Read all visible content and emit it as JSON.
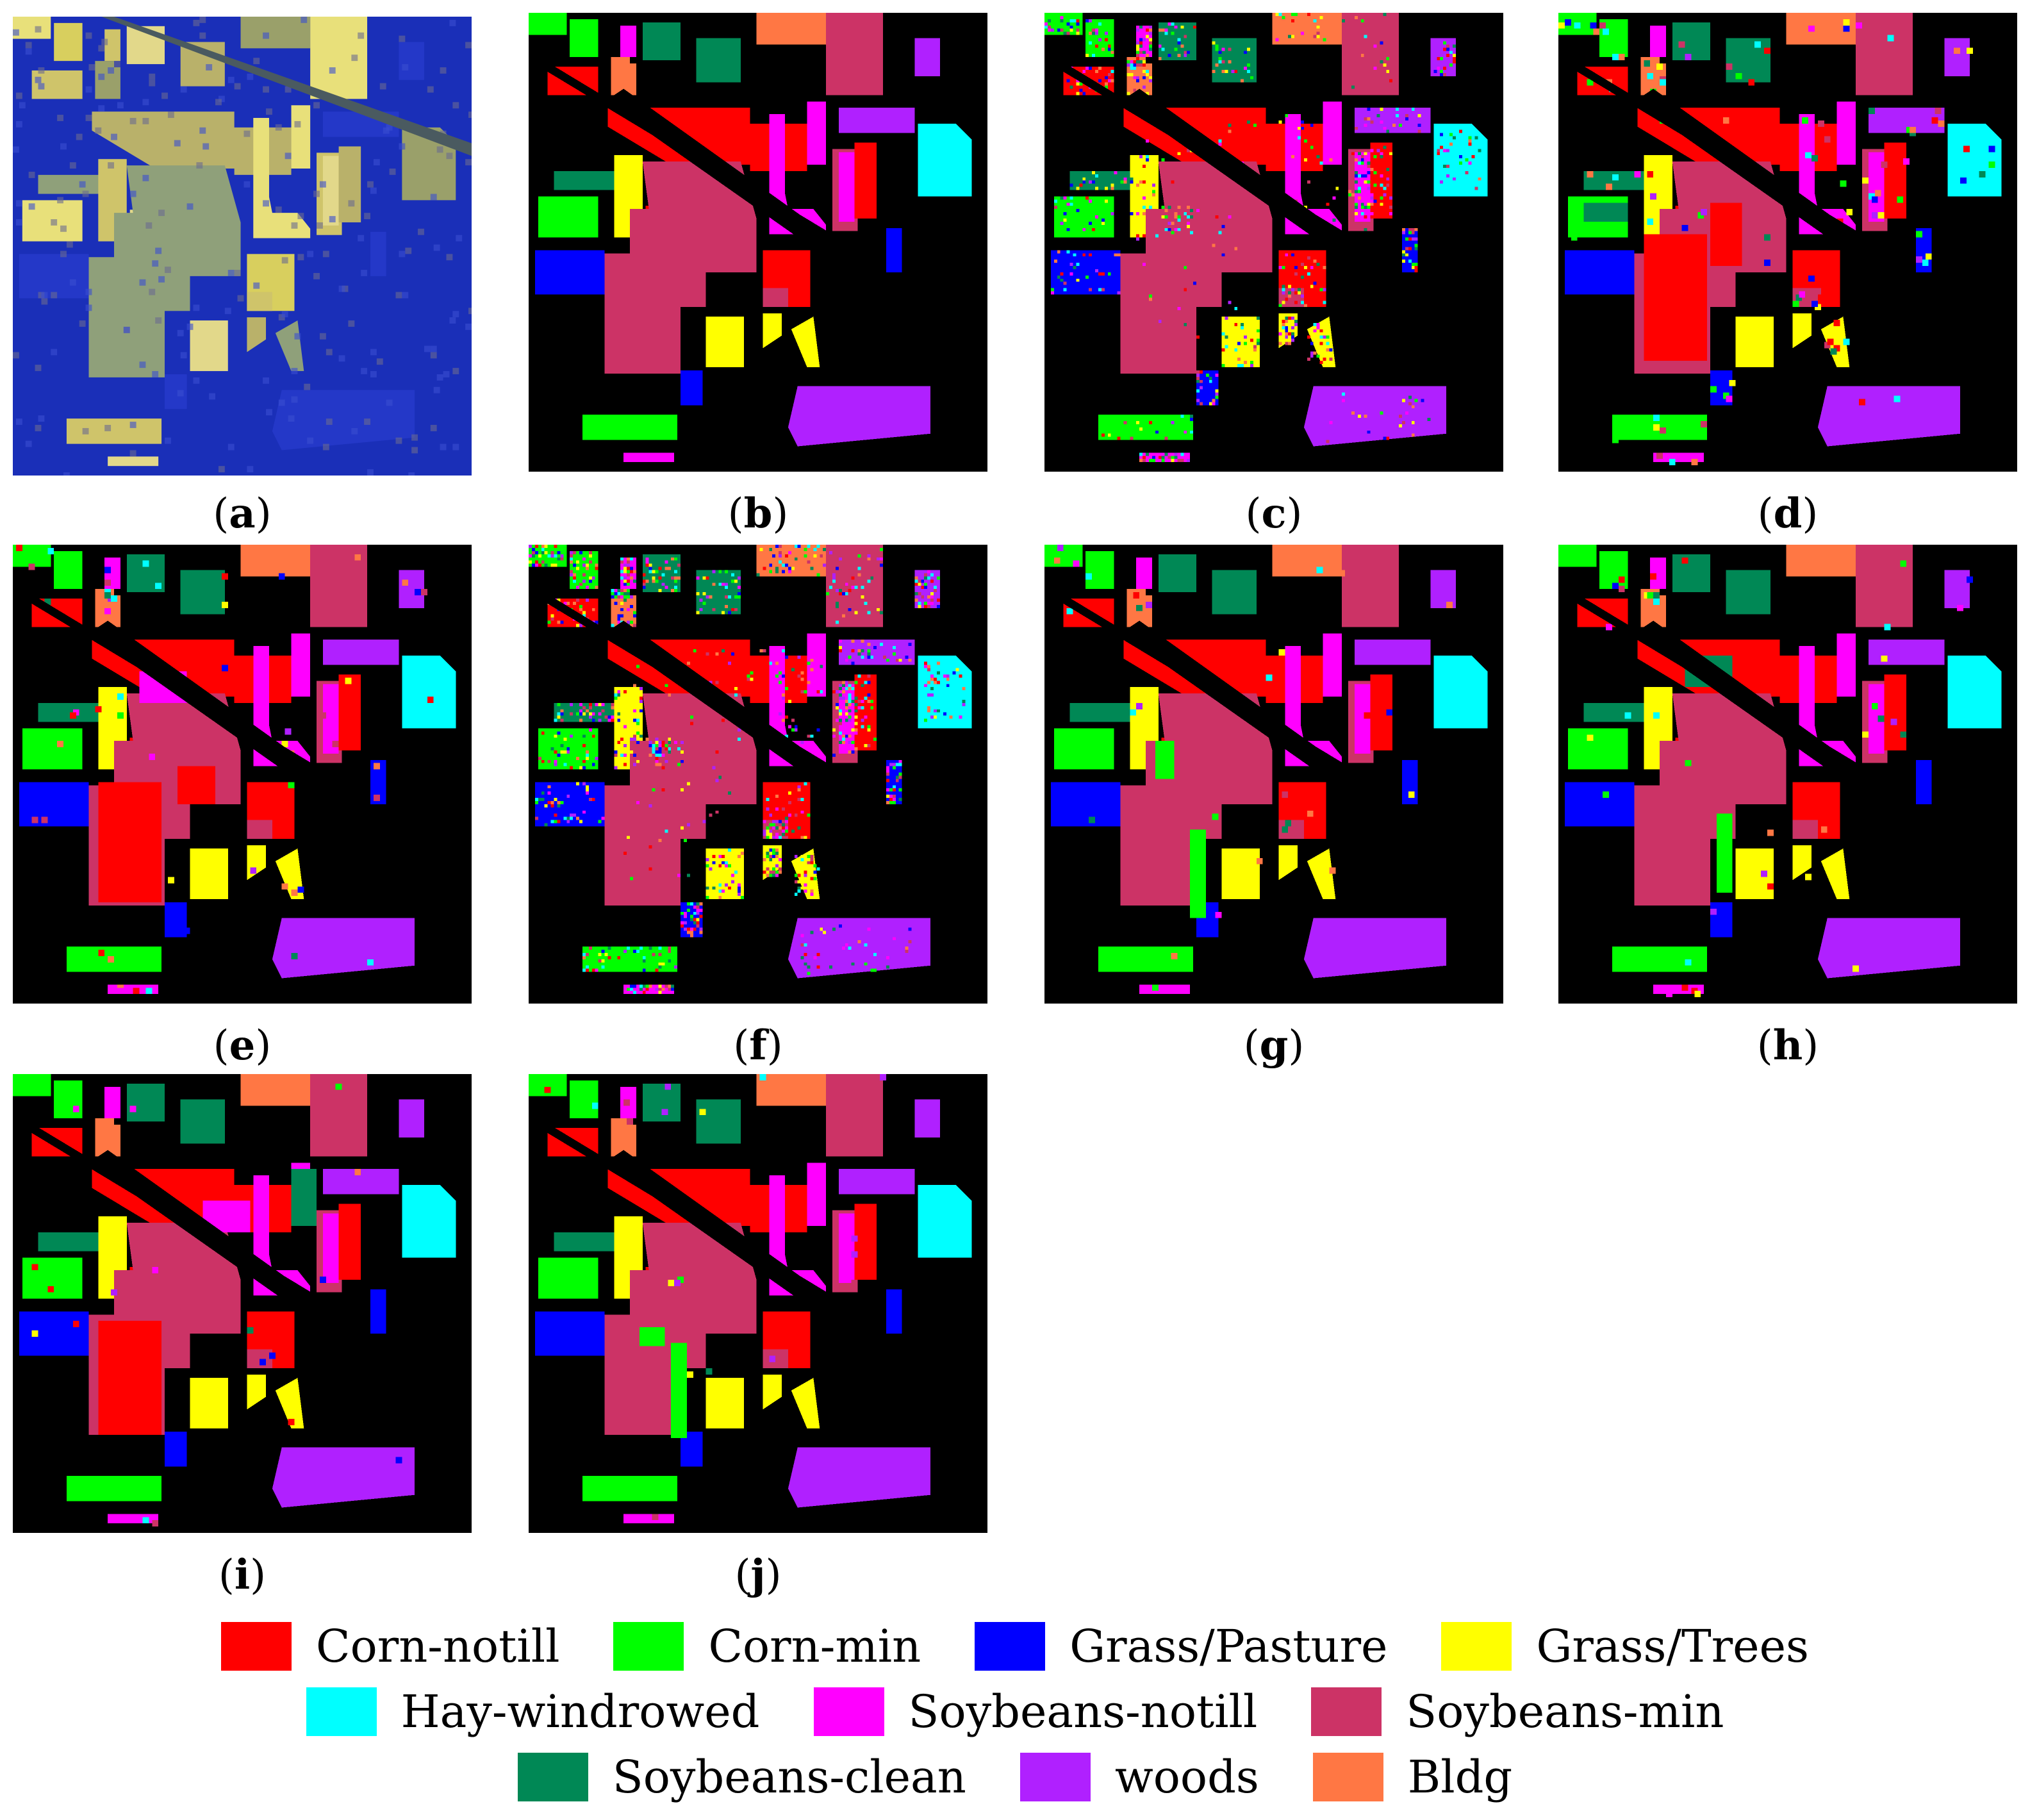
{
  "figure": {
    "panels": [
      {
        "id": "a",
        "caption": "a",
        "kind": "false-color"
      },
      {
        "id": "b",
        "caption": "b",
        "kind": "ground-truth"
      },
      {
        "id": "c",
        "caption": "c",
        "kind": "classification"
      },
      {
        "id": "d",
        "caption": "d",
        "kind": "classification"
      },
      {
        "id": "e",
        "caption": "e",
        "kind": "classification"
      },
      {
        "id": "f",
        "caption": "f",
        "kind": "classification"
      },
      {
        "id": "g",
        "caption": "g",
        "kind": "classification"
      },
      {
        "id": "h",
        "caption": "h",
        "kind": "classification"
      },
      {
        "id": "i",
        "caption": "i",
        "kind": "classification"
      },
      {
        "id": "j",
        "caption": "j",
        "kind": "classification"
      }
    ]
  },
  "legend": {
    "rows": [
      [
        {
          "label": "Corn-notill",
          "color": "#ff0000"
        },
        {
          "label": "Corn-min",
          "color": "#00ff00"
        },
        {
          "label": "Grass/Pasture",
          "color": "#0000ff"
        },
        {
          "label": "Grass/Trees",
          "color": "#ffff00"
        }
      ],
      [
        {
          "label": "Hay-windrowed",
          "color": "#00ffff"
        },
        {
          "label": "Soybeans-notill",
          "color": "#ff00ff"
        },
        {
          "label": "Soybeans-min",
          "color": "#cc3366"
        }
      ],
      [
        {
          "label": "Soybeans-clean",
          "color": "#008855"
        },
        {
          "label": "woods",
          "color": "#b020ff"
        },
        {
          "label": "Bldg",
          "color": "#ff7744"
        }
      ]
    ]
  }
}
